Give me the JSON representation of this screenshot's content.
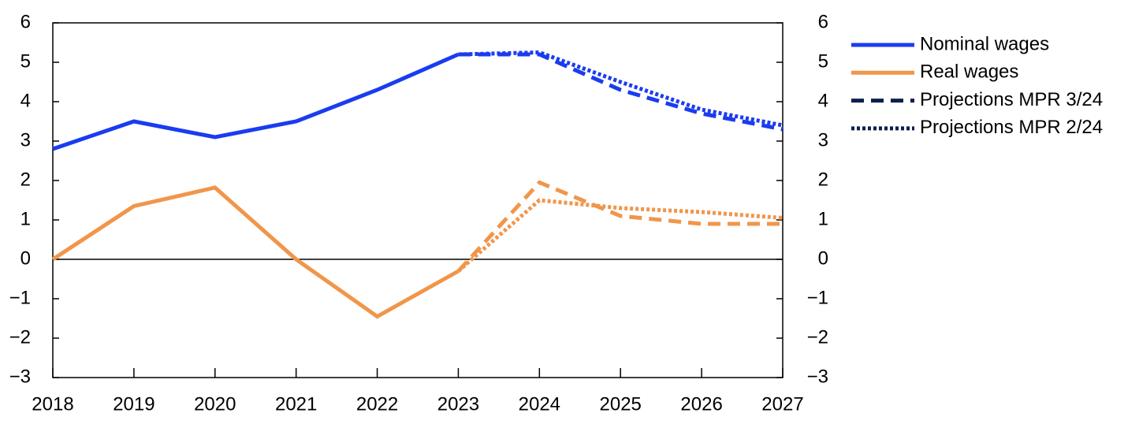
{
  "chart_data": {
    "type": "line",
    "x": [
      2018,
      2019,
      2020,
      2021,
      2022,
      2023,
      2024,
      2025,
      2026,
      2027
    ],
    "xlim": [
      2018,
      2027
    ],
    "xticks": [
      2018,
      2019,
      2020,
      2021,
      2022,
      2023,
      2024,
      2025,
      2026,
      2027
    ],
    "ylim": [
      -3,
      6
    ],
    "yticks": [
      {
        "value": -3,
        "label": "−3"
      },
      {
        "value": -2,
        "label": "−2"
      },
      {
        "value": -1,
        "label": "−1"
      },
      0,
      1,
      2,
      3,
      4,
      5,
      6
    ],
    "y2lim": [
      -3,
      6
    ],
    "y2ticks": [
      {
        "value": -3,
        "label": "−3"
      },
      {
        "value": -2,
        "label": "−2"
      },
      {
        "value": -1,
        "label": "−1"
      },
      0,
      1,
      2,
      3,
      4,
      5,
      6
    ],
    "zero_line": true,
    "series": [
      {
        "name": "Nominal wages",
        "color": "#1a3cf0",
        "values": [
          2.8,
          3.5,
          3.1,
          3.5,
          4.3,
          5.2,
          null,
          null,
          null,
          null
        ]
      },
      {
        "name": "Real wages",
        "color": "#f0964b",
        "values": [
          0.0,
          1.35,
          1.82,
          0.0,
          -1.45,
          -0.3,
          null,
          null,
          null,
          null
        ]
      }
    ],
    "projections": [
      {
        "name": "Projections MPR 3/24",
        "color": "#0d1f4a",
        "dash": "dashed",
        "series": [
          {
            "color": "#1a3cf0",
            "values": [
              null,
              null,
              null,
              null,
              null,
              5.2,
              5.2,
              4.3,
              3.7,
              3.3
            ]
          },
          {
            "color": "#f0964b",
            "values": [
              null,
              null,
              null,
              null,
              null,
              -0.3,
              1.95,
              1.1,
              0.9,
              0.9
            ]
          }
        ]
      },
      {
        "name": "Projections MPR 2/24",
        "color": "#0d1f4a",
        "dash": "dotted",
        "series": [
          {
            "color": "#1a3cf0",
            "values": [
              null,
              null,
              null,
              null,
              null,
              5.2,
              5.25,
              4.5,
              3.8,
              3.4
            ]
          },
          {
            "color": "#f0964b",
            "values": [
              null,
              null,
              null,
              null,
              null,
              -0.3,
              1.5,
              1.3,
              1.2,
              1.05
            ]
          }
        ]
      }
    ]
  }
}
